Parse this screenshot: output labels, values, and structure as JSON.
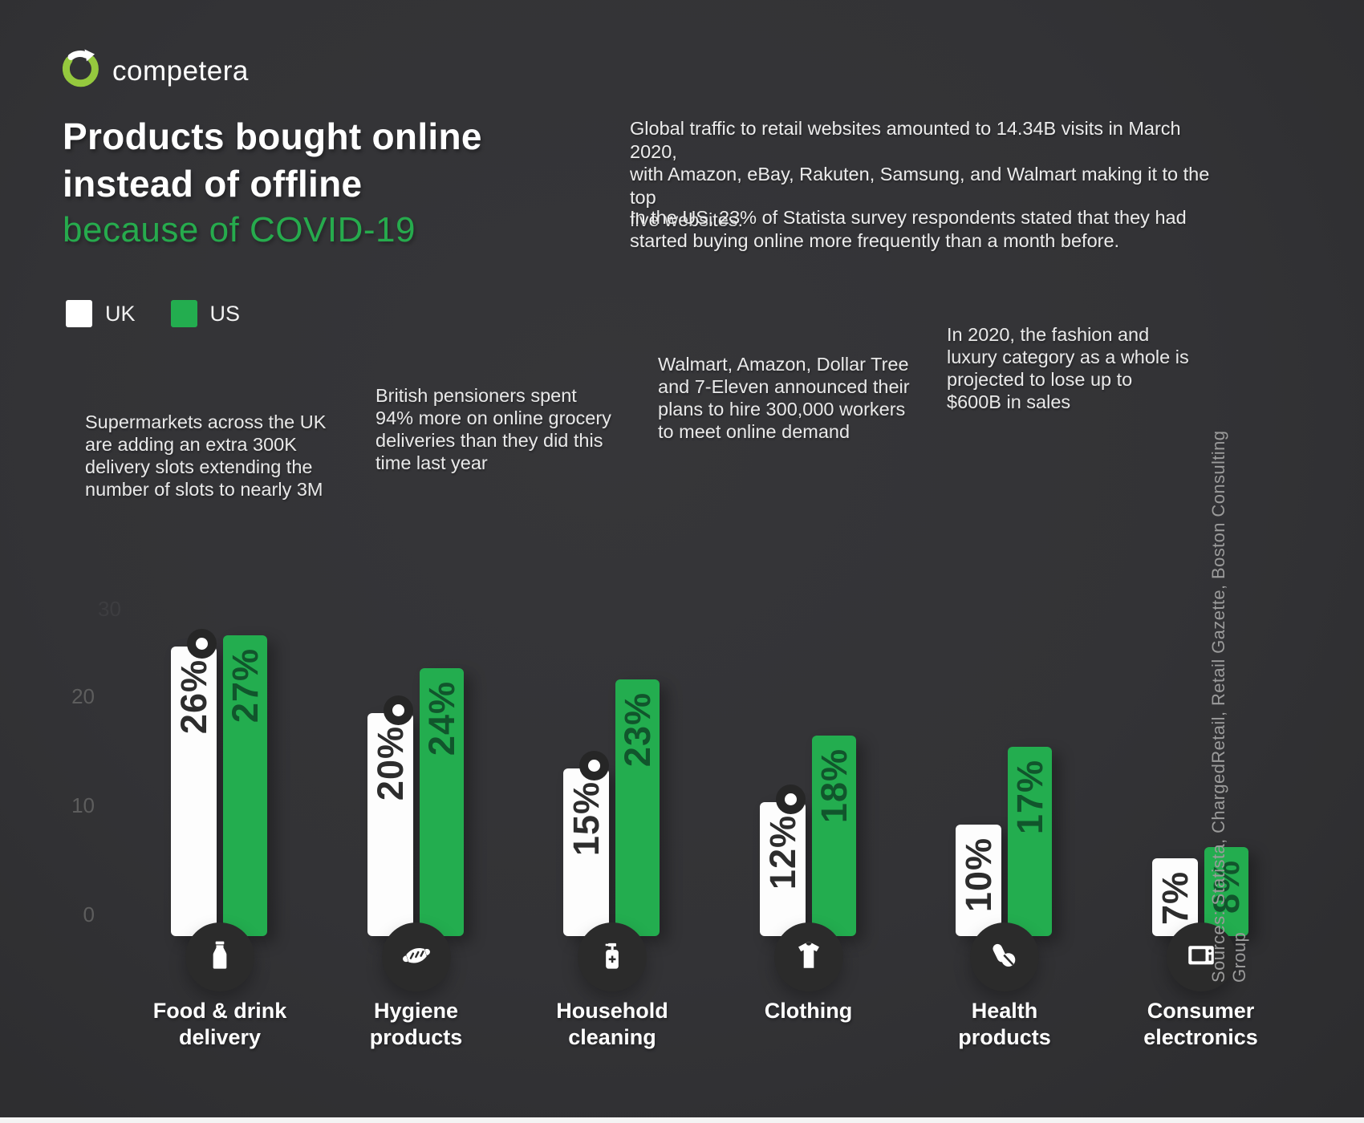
{
  "brand": {
    "name": "competera"
  },
  "title": {
    "line1": "Products bought online",
    "line2": "instead of offline",
    "highlight": "because of COVID-19"
  },
  "intro": {
    "paragraph1": "Global traffic to retail websites amounted to 14.34B visits in March 2020,\nwith Amazon, eBay, Rakuten, Samsung, and Walmart making it to the top\nfive websites.",
    "paragraph2": "In the US, 23% of Statista survey respondents stated that they had\nstarted buying online more frequently than a month before."
  },
  "legend": {
    "items": [
      {
        "label": "UK",
        "color": "#ffffff"
      },
      {
        "label": "US",
        "color": "#23ad4f"
      }
    ]
  },
  "notes": [
    {
      "text": "Supermarkets across the UK\nare adding an extra 300K\ndelivery slots extending the\nnumber of slots to nearly 3M"
    },
    {
      "text": "British pensioners spent\n94% more on online grocery\ndeliveries than they did this\ntime last year"
    },
    {
      "text": "Walmart, Amazon, Dollar Tree\nand 7-Eleven announced their\nplans to hire 300,000 workers\nto meet online demand"
    },
    {
      "text": "In 2020, the fashion and\nluxury category as a whole is\nprojected to lose up to\n$600B in sales"
    }
  ],
  "sources": "Sources: Statista, ChargedRetail, Retail Gazette, Boston Consulting Group",
  "colors": {
    "background": "#333336",
    "accent_green": "#23ad4f",
    "logo_green": "#95c93e",
    "bar_white": "#fdfdfd",
    "label_on_white": "#2d2d2d",
    "label_on_green": "#11552c",
    "tick_gray": "#5d5d5d",
    "text_light": "#e9e9e9",
    "sources_gray": "#9b9b9b",
    "icon_circle": "#2b2b2b"
  },
  "chart_data": {
    "type": "bar",
    "unit": "%",
    "title": "Products bought online instead of offline because of COVID-19",
    "categories": [
      "Food & drink\ndelivery",
      "Hygiene\nproducts",
      "Household\ncleaning",
      "Clothing",
      "Health\nproducts",
      "Consumer\nelectronics"
    ],
    "series": [
      {
        "name": "UK",
        "color": "#ffffff",
        "values": [
          26,
          20,
          15,
          12,
          10,
          7
        ]
      },
      {
        "name": "US",
        "color": "#23ad4f",
        "values": [
          27,
          24,
          23,
          18,
          17,
          8
        ]
      }
    ],
    "value_label_format": "{v}%",
    "yticks": [
      0,
      10,
      20
    ],
    "faint_tick": "30",
    "ylim": [
      0,
      30
    ],
    "grid": false,
    "legend_position": "top-left",
    "icons": [
      "milk-bottle",
      "face-mask",
      "sanitizer-bottle",
      "t-shirt",
      "pills",
      "microwave"
    ],
    "dot_marker_on_uk": [
      true,
      true,
      true,
      true,
      false,
      false
    ]
  }
}
